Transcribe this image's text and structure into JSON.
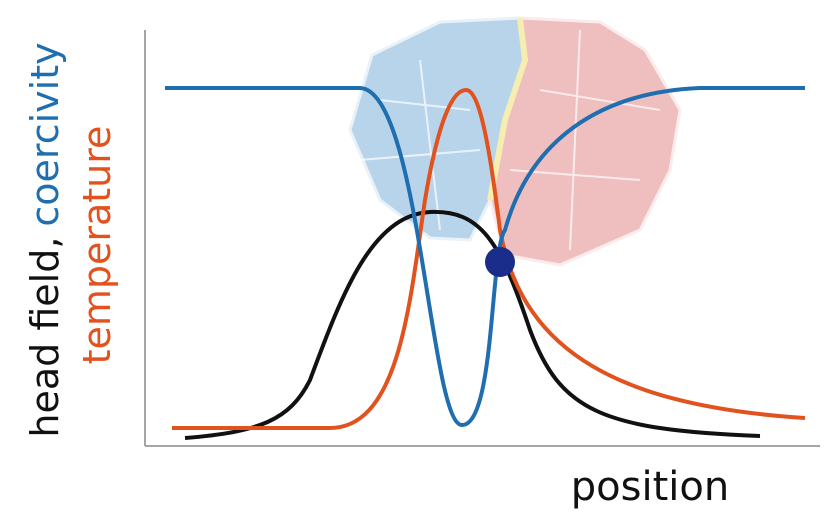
{
  "y_label": {
    "head_field": "head field,",
    "coercivity": "coercivity"
  },
  "y_label_2": "temperature",
  "x_label": "position"
}
